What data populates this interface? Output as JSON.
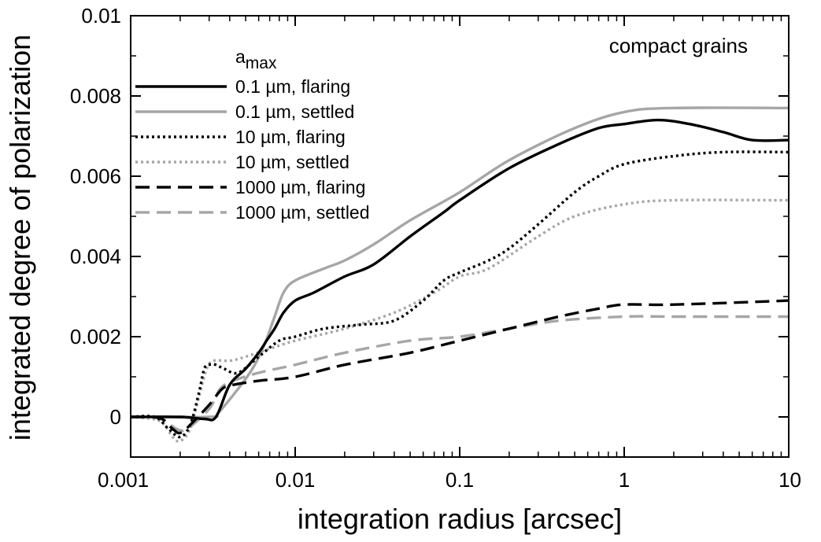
{
  "chart_data": {
    "type": "line",
    "title": "",
    "xlabel": "integration radius [arcsec]",
    "ylabel": "integrated degree of polarization",
    "xscale": "log",
    "xlim": [
      0.001,
      10
    ],
    "ylim": [
      -0.001,
      0.01
    ],
    "x_ticks": [
      {
        "value": 0.001,
        "label": "0.001"
      },
      {
        "value": 0.01,
        "label": "0.01"
      },
      {
        "value": 0.1,
        "label": "0.1"
      },
      {
        "value": 1,
        "label": "1"
      },
      {
        "value": 10,
        "label": "10"
      }
    ],
    "y_ticks": [
      {
        "value": 0,
        "label": "0"
      },
      {
        "value": 0.002,
        "label": "0.002"
      },
      {
        "value": 0.004,
        "label": "0.004"
      },
      {
        "value": 0.006,
        "label": "0.006"
      },
      {
        "value": 0.008,
        "label": "0.008"
      },
      {
        "value": 0.01,
        "label": "0.01"
      }
    ],
    "annotation": "compact grains",
    "legend": {
      "title_base": "a",
      "title_sub": "max",
      "position": "top-left"
    },
    "series": [
      {
        "name": "0.1 µm, flaring",
        "color": "#000000",
        "dash": "solid",
        "points": [
          [
            0.001,
            0
          ],
          [
            0.002,
            0
          ],
          [
            0.0028,
            -5e-05
          ],
          [
            0.0033,
            0
          ],
          [
            0.004,
            0.0008
          ],
          [
            0.005,
            0.0012
          ],
          [
            0.006,
            0.0016
          ],
          [
            0.0067,
            0.0019
          ],
          [
            0.0075,
            0.0022
          ],
          [
            0.0085,
            0.0026
          ],
          [
            0.01,
            0.0029
          ],
          [
            0.013,
            0.0031
          ],
          [
            0.02,
            0.0035
          ],
          [
            0.03,
            0.0038
          ],
          [
            0.05,
            0.0045
          ],
          [
            0.08,
            0.0051
          ],
          [
            0.1,
            0.0054
          ],
          [
            0.2,
            0.0062
          ],
          [
            0.4,
            0.0068
          ],
          [
            0.7,
            0.0072
          ],
          [
            1,
            0.0073
          ],
          [
            1.6,
            0.0074
          ],
          [
            2.5,
            0.0073
          ],
          [
            4,
            0.0071
          ],
          [
            6,
            0.0069
          ],
          [
            10,
            0.0069
          ]
        ]
      },
      {
        "name": "0.1 µm, settled",
        "color": "#a6a6a6",
        "dash": "solid",
        "points": [
          [
            0.001,
            0
          ],
          [
            0.003,
            0
          ],
          [
            0.0034,
            0.0001
          ],
          [
            0.0045,
            0.0007
          ],
          [
            0.0055,
            0.0012
          ],
          [
            0.0065,
            0.0018
          ],
          [
            0.0075,
            0.0025
          ],
          [
            0.0085,
            0.0031
          ],
          [
            0.01,
            0.0034
          ],
          [
            0.015,
            0.0037
          ],
          [
            0.02,
            0.0039
          ],
          [
            0.03,
            0.0043
          ],
          [
            0.05,
            0.0049
          ],
          [
            0.1,
            0.0056
          ],
          [
            0.2,
            0.0064
          ],
          [
            0.5,
            0.0072
          ],
          [
            1,
            0.0076
          ],
          [
            2,
            0.0077
          ],
          [
            10,
            0.0077
          ]
        ]
      },
      {
        "name": "10 µm, flaring",
        "color": "#000000",
        "dash": "dotted",
        "points": [
          [
            0.001,
            0
          ],
          [
            0.0014,
            0
          ],
          [
            0.0017,
            -0.0003
          ],
          [
            0.002,
            -0.0005
          ],
          [
            0.0023,
            -0.0002
          ],
          [
            0.0026,
            0.0006
          ],
          [
            0.0028,
            0.0012
          ],
          [
            0.003,
            0.0013
          ],
          [
            0.0033,
            0.0013
          ],
          [
            0.0037,
            0.0012
          ],
          [
            0.0045,
            0.0011
          ],
          [
            0.006,
            0.0015
          ],
          [
            0.008,
            0.0019
          ],
          [
            0.01,
            0.002
          ],
          [
            0.015,
            0.0022
          ],
          [
            0.025,
            0.0023
          ],
          [
            0.04,
            0.0024
          ],
          [
            0.06,
            0.0029
          ],
          [
            0.08,
            0.0034
          ],
          [
            0.1,
            0.0036
          ],
          [
            0.15,
            0.0039
          ],
          [
            0.2,
            0.0042
          ],
          [
            0.3,
            0.0048
          ],
          [
            0.5,
            0.0056
          ],
          [
            0.7,
            0.006
          ],
          [
            1,
            0.0063
          ],
          [
            2,
            0.0065
          ],
          [
            4,
            0.0066
          ],
          [
            10,
            0.0066
          ]
        ]
      },
      {
        "name": "10 µm, settled",
        "color": "#a6a6a6",
        "dash": "dotted",
        "points": [
          [
            0.001,
            0
          ],
          [
            0.0015,
            -0.0001
          ],
          [
            0.0018,
            -0.0005
          ],
          [
            0.002,
            -0.0006
          ],
          [
            0.0023,
            -0.0003
          ],
          [
            0.0026,
            0.0005
          ],
          [
            0.0029,
            0.0012
          ],
          [
            0.0032,
            0.0014
          ],
          [
            0.004,
            0.0014
          ],
          [
            0.005,
            0.0015
          ],
          [
            0.007,
            0.0017
          ],
          [
            0.01,
            0.0019
          ],
          [
            0.02,
            0.0022
          ],
          [
            0.04,
            0.0026
          ],
          [
            0.07,
            0.0031
          ],
          [
            0.1,
            0.0035
          ],
          [
            0.15,
            0.0037
          ],
          [
            0.3,
            0.0045
          ],
          [
            0.5,
            0.005
          ],
          [
            1,
            0.0053
          ],
          [
            2,
            0.0054
          ],
          [
            10,
            0.0054
          ]
        ]
      },
      {
        "name": "1000 µm, flaring",
        "color": "#000000",
        "dash": "dashed",
        "points": [
          [
            0.001,
            0
          ],
          [
            0.0015,
            -3e-05
          ],
          [
            0.0018,
            -0.0003
          ],
          [
            0.002,
            -0.0004
          ],
          [
            0.0023,
            -0.0002
          ],
          [
            0.003,
            0.0003
          ],
          [
            0.0036,
            0.0007
          ],
          [
            0.0042,
            0.0008
          ],
          [
            0.006,
            0.0009
          ],
          [
            0.01,
            0.001
          ],
          [
            0.02,
            0.0013
          ],
          [
            0.05,
            0.0016
          ],
          [
            0.1,
            0.0019
          ],
          [
            0.2,
            0.0022
          ],
          [
            0.4,
            0.0025
          ],
          [
            0.7,
            0.0027
          ],
          [
            1,
            0.0028
          ],
          [
            2,
            0.0028
          ],
          [
            10,
            0.0029
          ]
        ]
      },
      {
        "name": "1000 µm, settled",
        "color": "#a6a6a6",
        "dash": "dashed",
        "points": [
          [
            0.001,
            0
          ],
          [
            0.0015,
            -3e-05
          ],
          [
            0.0019,
            -0.0003
          ],
          [
            0.0022,
            -0.0003
          ],
          [
            0.003,
            0.0002
          ],
          [
            0.0035,
            0.0007
          ],
          [
            0.0042,
            0.0009
          ],
          [
            0.006,
            0.0011
          ],
          [
            0.01,
            0.0013
          ],
          [
            0.02,
            0.0016
          ],
          [
            0.05,
            0.0019
          ],
          [
            0.1,
            0.002
          ],
          [
            0.2,
            0.0022
          ],
          [
            0.4,
            0.0024
          ],
          [
            1,
            0.0025
          ],
          [
            2,
            0.0025
          ],
          [
            10,
            0.0025
          ]
        ]
      }
    ]
  }
}
